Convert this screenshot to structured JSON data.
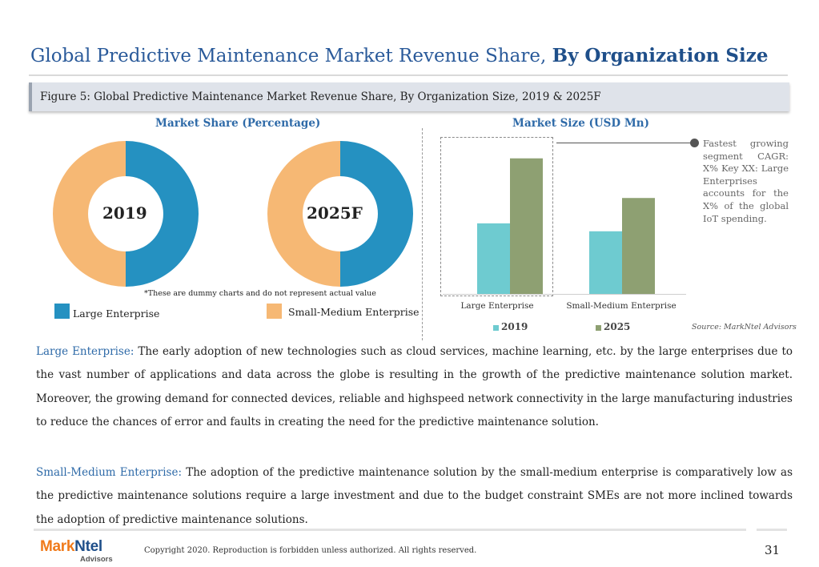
{
  "header": {
    "title_regular": "Global Predictive Maintenance Market Revenue Share,",
    "title_bold": "By Organization Size",
    "figure_caption": "Figure 5: Global Predictive Maintenance Market Revenue Share, By Organization Size, 2019 & 2025F"
  },
  "chart_data": [
    {
      "type": "pie",
      "subtype": "donut",
      "title": "Market Share (Percentage)",
      "center_label": "2019",
      "categories": [
        "Large Enterprise",
        "Small-Medium Enterprise"
      ],
      "values": [
        50,
        50
      ],
      "colors": [
        "#2591c1",
        "#f6b874"
      ]
    },
    {
      "type": "pie",
      "subtype": "donut",
      "title": "",
      "center_label": "2025F",
      "categories": [
        "Large Enterprise",
        "Small-Medium Enterprise"
      ],
      "values": [
        50,
        50
      ],
      "colors": [
        "#2591c1",
        "#f6b874"
      ]
    },
    {
      "type": "bar",
      "title": "Market Size (USD Mn)",
      "categories": [
        "Large Enterprise",
        "Small-Medium Enterprise"
      ],
      "series": [
        {
          "name": "2019",
          "values": [
            45,
            40
          ],
          "color": "#6ecbd0"
        },
        {
          "name": "2025",
          "values": [
            86,
            61
          ],
          "color": "#8ea072"
        }
      ],
      "ylim": [
        0,
        100
      ],
      "grid": false,
      "legend": "bottom",
      "highlight_category": "Large Enterprise"
    }
  ],
  "donut_legend": {
    "large": "Large Enterprise",
    "sme": "Small-Medium Enterprise"
  },
  "dummy_note": "*These are dummy charts and do not represent actual value",
  "callout": "Fastest growing segment CAGR: X% Key XX: Large Enterprises accounts for the X% of the global IoT spending.",
  "source": "Source: MarkNtel Advisors",
  "body": {
    "p1_label": "Large Enterprise:",
    "p1_text": "The early adoption of new technologies such as cloud services, machine learning, etc. by the large enterprises due to the vast number of applications and data across the globe is resulting in the growth of the predictive maintenance solution market.  Moreover, the growing demand for connected devices, reliable and highspeed network connectivity in the large manufacturing industries to reduce the chances of error and faults in creating the need for the predictive maintenance solution.",
    "p2_label": "Small-Medium Enterprise:",
    "p2_text": "The adoption of the predictive maintenance solution by the small-medium enterprise is comparatively low as the predictive maintenance solutions require a large investment and due to the budget constraint SMEs are not more inclined towards the adoption of predictive maintenance solutions."
  },
  "footer": {
    "logo_mark": "Mark",
    "logo_ntel": "Ntel",
    "logo_sub": "Advisors",
    "copyright": "Copyright 2020. Reproduction is forbidden unless authorized. All rights reserved.",
    "page_number": "31"
  }
}
